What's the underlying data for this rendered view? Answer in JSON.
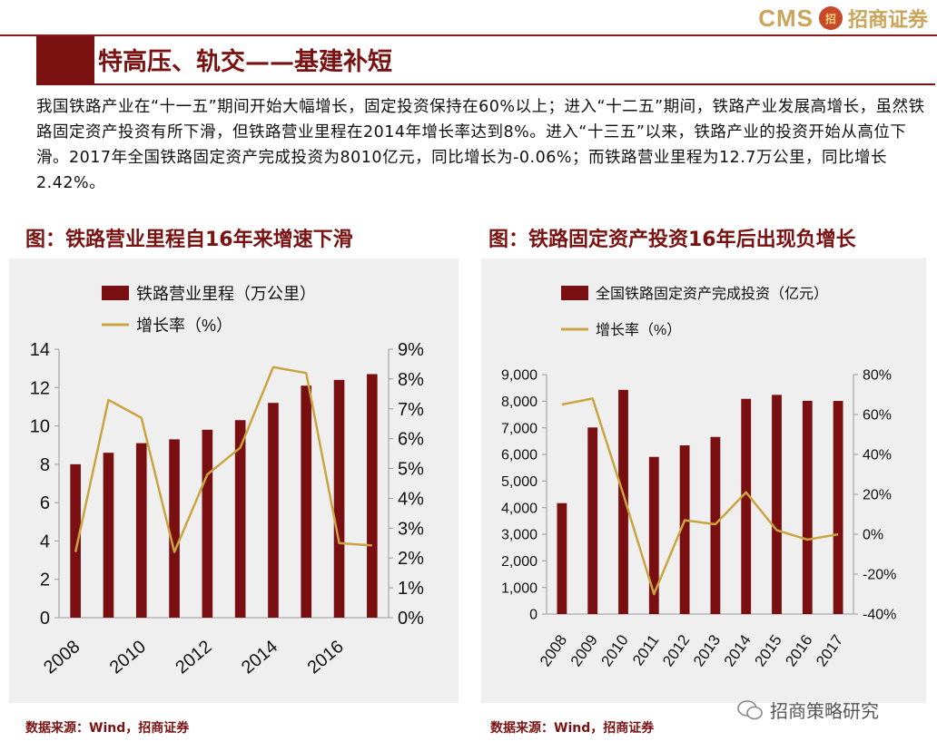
{
  "header": {
    "brand_cms": "CMS",
    "brand_logo_text": "招",
    "brand_name": "招商证券",
    "title": "特高压、轨交——基建补短"
  },
  "paragraph": "我国铁路产业在“十一五”期间开始大幅增长，固定投资保持在60%以上；进入“十二五”期间，铁路产业发展高增长，虽然铁路固定资产投资有所下滑，但铁路营业里程在2014年增长率达到8%。进入“十三五”以来，铁路产业的投资开始从高位下滑。2017年全国铁路固定资产完成投资为8010亿元，同比增长为-0.06%；而铁路营业里程为12.7万公里，同比增长2.42%。",
  "left_chart_title": "图：铁路营业里程自16年来增速下滑",
  "right_chart_title": "图：铁路固定资产投资16年后出现负增长",
  "left_source": "数据来源：Wind，招商证券",
  "right_source": "数据来源：Wind，招商证券",
  "watermark": "招商策略研究",
  "colors": {
    "bar": "#7a0f12",
    "line": "#c9a441",
    "title": "#7a1212"
  },
  "chart_data": [
    {
      "type": "bar",
      "title": "铁路营业里程自16年来增速下滑",
      "categories": [
        "2008",
        "2009",
        "2010",
        "2011",
        "2012",
        "2013",
        "2014",
        "2015",
        "2016",
        "2017"
      ],
      "x_tick_labels": [
        "2008",
        "2010",
        "2012",
        "2014",
        "2016"
      ],
      "series": [
        {
          "name": "铁路营业里程（万公里）",
          "kind": "bar",
          "axis": "left",
          "values": [
            8.0,
            8.6,
            9.1,
            9.3,
            9.8,
            10.3,
            11.2,
            12.1,
            12.4,
            12.7
          ]
        },
        {
          "name": "增长率（%）",
          "kind": "line",
          "axis": "right",
          "values": [
            2.2,
            7.3,
            6.7,
            2.2,
            4.8,
            5.7,
            8.4,
            8.2,
            2.5,
            2.42
          ]
        }
      ],
      "left_axis": {
        "ylim": [
          0,
          14
        ],
        "ticks": [
          0,
          2,
          4,
          6,
          8,
          10,
          12,
          14
        ],
        "labels": [
          "0",
          "2",
          "4",
          "6",
          "8",
          "10",
          "12",
          "14"
        ]
      },
      "right_axis": {
        "ylim": [
          0,
          9
        ],
        "ticks": [
          0,
          1,
          2,
          3,
          4,
          5,
          6,
          7,
          8,
          9
        ],
        "labels": [
          "0%",
          "1%",
          "2%",
          "3%",
          "4%",
          "5%",
          "6%",
          "7%",
          "8%",
          "9%"
        ]
      },
      "legend": [
        "铁路营业里程（万公里）",
        "增长率（%）"
      ],
      "legend_position": "top-left"
    },
    {
      "type": "bar",
      "title": "铁路固定资产投资16年后出现负增长",
      "categories": [
        "2008",
        "2009",
        "2010",
        "2011",
        "2012",
        "2013",
        "2014",
        "2015",
        "2016",
        "2017"
      ],
      "x_tick_labels": [
        "2008",
        "2009",
        "2010",
        "2011",
        "2012",
        "2013",
        "2014",
        "2015",
        "2016",
        "2017"
      ],
      "series": [
        {
          "name": "全国铁路固定资产完成投资（亿元）",
          "kind": "bar",
          "axis": "left",
          "values": [
            4168,
            7013,
            8427,
            5906,
            6340,
            6657,
            8088,
            8238,
            8015,
            8010
          ]
        },
        {
          "name": "增长率（%）",
          "kind": "line",
          "axis": "right",
          "values": [
            65,
            68,
            20,
            -30,
            7,
            5,
            21,
            2,
            -2.7,
            -0.06
          ]
        }
      ],
      "left_axis": {
        "ylim": [
          0,
          9000
        ],
        "ticks": [
          0,
          1000,
          2000,
          3000,
          4000,
          5000,
          6000,
          7000,
          8000,
          9000
        ],
        "labels": [
          "0",
          "1,000",
          "2,000",
          "3,000",
          "4,000",
          "5,000",
          "6,000",
          "7,000",
          "8,000",
          "9,000"
        ]
      },
      "right_axis": {
        "ylim": [
          -40,
          80
        ],
        "ticks": [
          -40,
          -20,
          0,
          20,
          40,
          60,
          80
        ],
        "labels": [
          "-40%",
          "-20%",
          "0%",
          "20%",
          "40%",
          "60%",
          "80%"
        ]
      },
      "legend": [
        "全国铁路固定资产完成投资（亿元）",
        "增长率（%）"
      ],
      "legend_position": "top-left"
    }
  ]
}
